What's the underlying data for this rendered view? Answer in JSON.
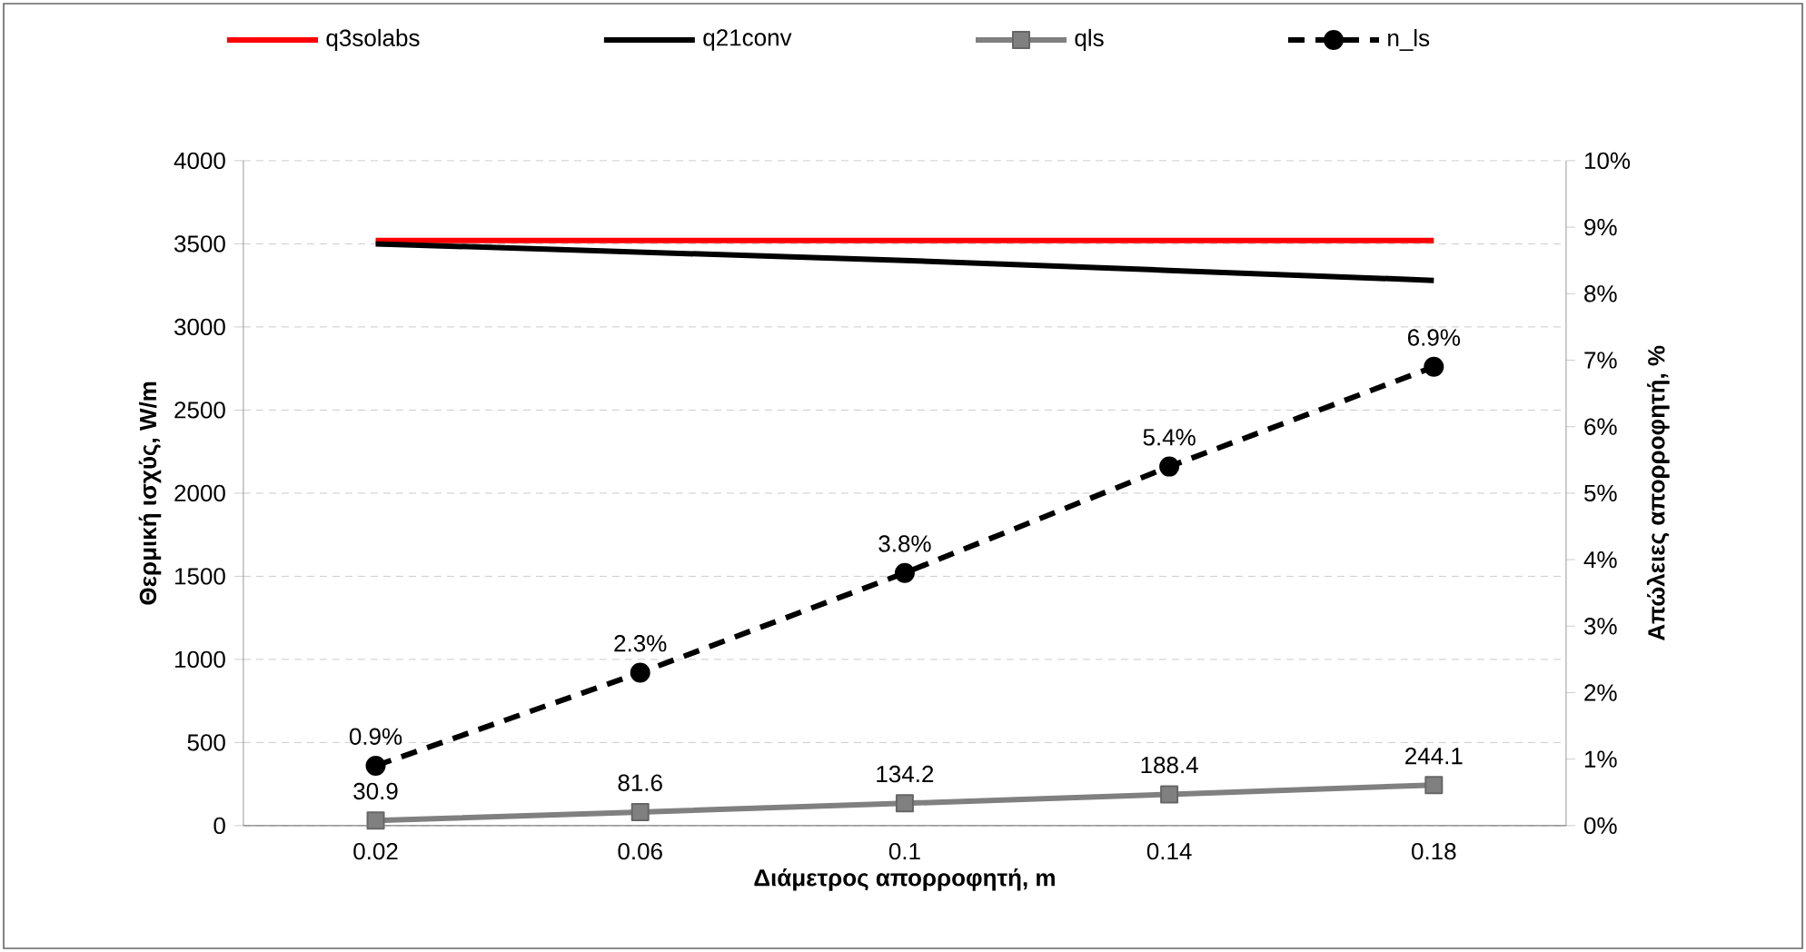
{
  "chart_data": {
    "type": "line",
    "xlabel": "Διάμετρος απορροφητή, m",
    "ylabel": "Θερμική ισχύς, W/m",
    "y2label": "Απώλειες απορροφητή, %",
    "categories": [
      "0.02",
      "0.06",
      "0.1",
      "0.14",
      "0.18"
    ],
    "ylim": [
      0,
      4000
    ],
    "yticks": [
      0,
      500,
      1000,
      1500,
      2000,
      2500,
      3000,
      3500,
      4000
    ],
    "y2lim": [
      0,
      10
    ],
    "y2ticks": [
      {
        "value": 0,
        "label": "0%"
      },
      {
        "value": 1,
        "label": "1%"
      },
      {
        "value": 2,
        "label": "2%"
      },
      {
        "value": 3,
        "label": "3%"
      },
      {
        "value": 4,
        "label": "4%"
      },
      {
        "value": 5,
        "label": "5%"
      },
      {
        "value": 6,
        "label": "6%"
      },
      {
        "value": 7,
        "label": "7%"
      },
      {
        "value": 8,
        "label": "8%"
      },
      {
        "value": 9,
        "label": "9%"
      },
      {
        "value": 10,
        "label": "10%"
      }
    ],
    "grid": "y",
    "legend": "top",
    "series": [
      {
        "name": "q3solabs",
        "color": "#ff0000",
        "marker": "none",
        "line_style": "solid",
        "values": [
          3520,
          3520,
          3520,
          3520,
          3520
        ]
      },
      {
        "name": "q21conv",
        "color": "#000000",
        "marker": "none",
        "line_style": "solid",
        "values": [
          3500,
          3450,
          3400,
          3340,
          3280
        ]
      },
      {
        "name": "qls",
        "color": "#808080",
        "marker": "square",
        "line_style": "solid",
        "values": [
          30.9,
          81.6,
          134.2,
          188.4,
          244.1
        ],
        "value_labels": [
          "30.9",
          "81.6",
          "134.2",
          "188.4",
          "244.1"
        ]
      },
      {
        "name": "n_ls",
        "color": "#000000",
        "marker": "circle",
        "line_style": "dashed",
        "axis": "y2",
        "values": [
          0.9,
          2.3,
          3.8,
          5.4,
          6.9
        ],
        "value_labels": [
          "0.9%",
          "2.3%",
          "3.8%",
          "5.4%",
          "6.9%"
        ]
      }
    ]
  }
}
